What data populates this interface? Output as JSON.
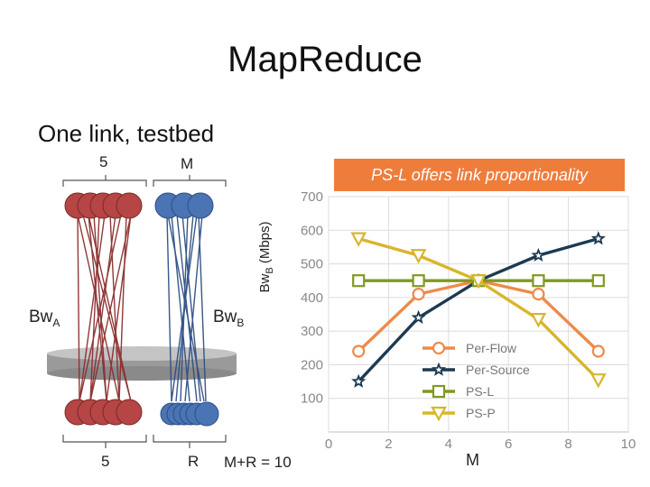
{
  "title": "MapReduce",
  "subtitle": "One link, testbed",
  "diagram": {
    "top_left_count": "5",
    "top_right_label": "M",
    "bottom_left_count": "5",
    "bottom_right_label": "R",
    "left_bw_label": "Bw",
    "left_bw_sub": "A",
    "right_bw_label": "Bw",
    "right_bw_sub": "B",
    "equation": "M+R  = 10",
    "colors": {
      "red": "#b64545",
      "blue": "#4a74b4",
      "disk": "#a9a9a9"
    }
  },
  "banner": "PS-L offers link proportionality",
  "chart_data": {
    "type": "line",
    "title": "",
    "xlabel": "M",
    "ylabel_main": "Bw",
    "ylabel_sub": "B",
    "ylabel_unit": " (Mbps)",
    "xlim": [
      0,
      10
    ],
    "ylim": [
      0,
      700
    ],
    "xticks": [
      0,
      2,
      4,
      6,
      8,
      10
    ],
    "yticks": [
      100,
      200,
      300,
      400,
      500,
      600,
      700
    ],
    "grid": true,
    "legend_position": "bottom-center",
    "series": [
      {
        "name": "Per-Flow",
        "marker": "circle",
        "color": "#ee8a4a",
        "x": [
          1,
          3,
          5,
          7,
          9
        ],
        "y": [
          240,
          410,
          450,
          410,
          240
        ]
      },
      {
        "name": "Per-Source",
        "marker": "star",
        "color": "#1d3a52",
        "x": [
          1,
          3,
          5,
          7,
          9
        ],
        "y": [
          150,
          340,
          450,
          525,
          575
        ]
      },
      {
        "name": "PS-L",
        "marker": "square",
        "color": "#7e9a1e",
        "x": [
          1,
          3,
          5,
          7,
          9
        ],
        "y": [
          450,
          450,
          450,
          450,
          450
        ]
      },
      {
        "name": "PS-P",
        "marker": "triangle-down",
        "color": "#d9b52a",
        "x": [
          1,
          3,
          5,
          7,
          9
        ],
        "y": [
          575,
          525,
          450,
          335,
          155
        ]
      }
    ]
  }
}
